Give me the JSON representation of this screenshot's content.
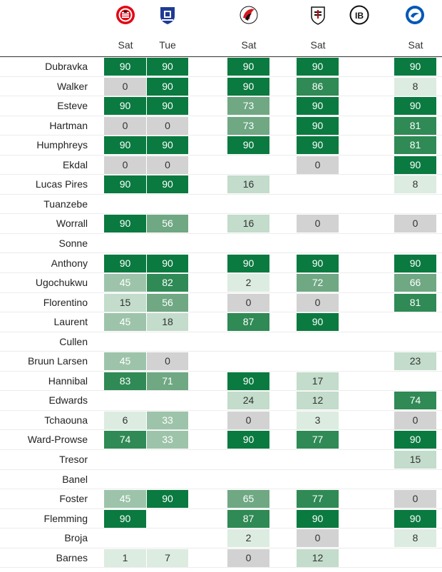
{
  "header": {
    "columns": [
      {
        "day": "Sat",
        "logo": "brentford-crest-icon"
      },
      {
        "day": "Tue",
        "logo": "everton-crest-icon"
      },
      {
        "day": "",
        "logo": ""
      },
      {
        "day": "Sat",
        "logo": "bournemouth-crest-icon"
      },
      {
        "day": "",
        "logo": ""
      },
      {
        "day": "Sat",
        "logo": "fulham-crest-icon"
      },
      {
        "day": "",
        "logo": "ipswich-crest-icon"
      },
      {
        "day": "Sat",
        "logo": "brighton-crest-icon"
      }
    ],
    "ipswich_text": "IB"
  },
  "colors": {
    "high": "#0a7a40",
    "mid_high": "#2f8a55",
    "mid": "#6fa883",
    "low_mid": "#9dc4aa",
    "low": "#c3dccb",
    "very_low": "#dcece1",
    "zero": "#d2d2d2"
  },
  "players": [
    {
      "name": "Dubravka",
      "minutes": [
        90,
        90,
        null,
        90,
        null,
        90,
        null,
        90
      ]
    },
    {
      "name": "Walker",
      "minutes": [
        0,
        90,
        null,
        90,
        null,
        86,
        null,
        8
      ]
    },
    {
      "name": "Esteve",
      "minutes": [
        90,
        90,
        null,
        73,
        null,
        90,
        null,
        90
      ]
    },
    {
      "name": "Hartman",
      "minutes": [
        0,
        0,
        null,
        73,
        null,
        90,
        null,
        81
      ]
    },
    {
      "name": "Humphreys",
      "minutes": [
        90,
        90,
        null,
        90,
        null,
        90,
        null,
        81
      ]
    },
    {
      "name": "Ekdal",
      "minutes": [
        0,
        0,
        null,
        null,
        null,
        0,
        null,
        90
      ]
    },
    {
      "name": "Lucas Pires",
      "minutes": [
        90,
        90,
        null,
        16,
        null,
        null,
        null,
        8
      ]
    },
    {
      "name": "Tuanzebe",
      "minutes": [
        null,
        null,
        null,
        null,
        null,
        null,
        null,
        null
      ]
    },
    {
      "name": "Worrall",
      "minutes": [
        90,
        56,
        null,
        16,
        null,
        0,
        null,
        0
      ]
    },
    {
      "name": "Sonne",
      "minutes": [
        null,
        null,
        null,
        null,
        null,
        null,
        null,
        null
      ]
    },
    {
      "name": "Anthony",
      "minutes": [
        90,
        90,
        null,
        90,
        null,
        90,
        null,
        90
      ]
    },
    {
      "name": "Ugochukwu",
      "minutes": [
        45,
        82,
        null,
        2,
        null,
        72,
        null,
        66
      ]
    },
    {
      "name": "Florentino",
      "minutes": [
        15,
        56,
        null,
        0,
        null,
        0,
        null,
        81
      ]
    },
    {
      "name": "Laurent",
      "minutes": [
        45,
        18,
        null,
        87,
        null,
        90,
        null,
        null
      ]
    },
    {
      "name": "Cullen",
      "minutes": [
        null,
        null,
        null,
        null,
        null,
        null,
        null,
        null
      ]
    },
    {
      "name": "Bruun Larsen",
      "minutes": [
        45,
        0,
        null,
        null,
        null,
        null,
        null,
        23
      ]
    },
    {
      "name": "Hannibal",
      "minutes": [
        83,
        71,
        null,
        90,
        null,
        17,
        null,
        null
      ]
    },
    {
      "name": "Edwards",
      "minutes": [
        null,
        null,
        null,
        24,
        null,
        12,
        null,
        74
      ]
    },
    {
      "name": "Tchaouna",
      "minutes": [
        6,
        33,
        null,
        0,
        null,
        3,
        null,
        0
      ]
    },
    {
      "name": "Ward-Prowse",
      "minutes": [
        74,
        33,
        null,
        90,
        null,
        77,
        null,
        90
      ]
    },
    {
      "name": "Tresor",
      "minutes": [
        null,
        null,
        null,
        null,
        null,
        null,
        null,
        15
      ]
    },
    {
      "name": "Banel",
      "minutes": [
        null,
        null,
        null,
        null,
        null,
        null,
        null,
        null
      ]
    },
    {
      "name": "Foster",
      "minutes": [
        45,
        90,
        null,
        65,
        null,
        77,
        null,
        0
      ]
    },
    {
      "name": "Flemming",
      "minutes": [
        90,
        null,
        null,
        87,
        null,
        90,
        null,
        90
      ]
    },
    {
      "name": "Broja",
      "minutes": [
        null,
        null,
        null,
        2,
        null,
        0,
        null,
        8
      ]
    },
    {
      "name": "Barnes",
      "minutes": [
        1,
        7,
        null,
        0,
        null,
        12,
        null,
        null
      ]
    }
  ]
}
